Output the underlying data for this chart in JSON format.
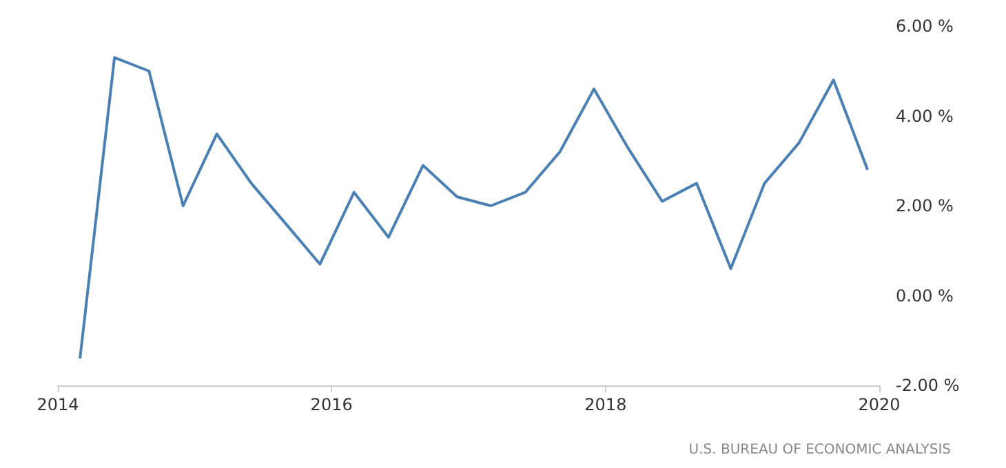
{
  "chart_data": {
    "type": "line",
    "x": [
      "2014-03-01",
      "2014-06-01",
      "2014-09-01",
      "2014-12-01",
      "2015-03-01",
      "2015-06-01",
      "2015-09-01",
      "2015-12-01",
      "2016-03-01",
      "2016-06-01",
      "2016-09-01",
      "2016-12-01",
      "2017-03-01",
      "2017-06-01",
      "2017-09-01",
      "2017-12-01",
      "2018-03-01",
      "2018-06-01",
      "2018-09-01",
      "2018-12-01",
      "2019-03-01",
      "2019-06-01",
      "2019-09-01",
      "2019-12-01"
    ],
    "series": [
      {
        "color": "#4a80b4",
        "values": [
          -1.4,
          5.3,
          5.0,
          2.0,
          3.6,
          2.5,
          1.6,
          0.7,
          2.3,
          1.3,
          2.9,
          2.2,
          2.0,
          2.3,
          3.2,
          4.6,
          3.3,
          2.1,
          2.5,
          0.6,
          2.5,
          3.4,
          4.8,
          2.8
        ]
      }
    ],
    "xlim": [
      "2014-01-01",
      "2020-01-01"
    ],
    "xticks": [
      "2014",
      "2016",
      "2018",
      "2020"
    ],
    "ylim": [
      -2,
      6
    ],
    "yticks": [
      {
        "value": -2,
        "label": "-2.00 %"
      },
      {
        "value": 0,
        "label": "0.00 %"
      },
      {
        "value": 2,
        "label": "2.00 %"
      },
      {
        "value": 4,
        "label": "4.00 %"
      },
      {
        "value": 6,
        "label": "6.00 %"
      }
    ],
    "grid": false,
    "marker": "none",
    "line_style": "solid",
    "annotations": [
      "U.S. BUREAU OF ECONOMIC ANALYSIS"
    ]
  }
}
